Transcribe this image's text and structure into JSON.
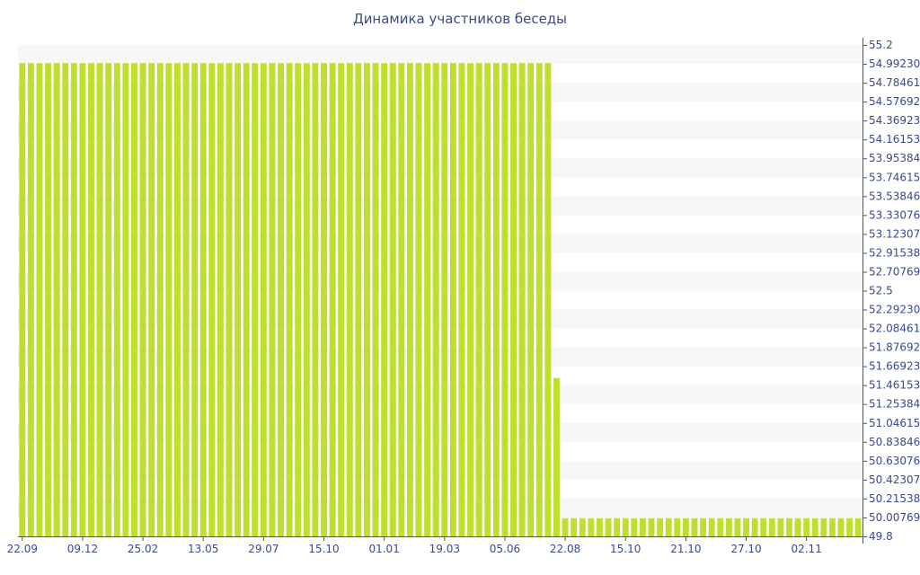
{
  "chart_data": {
    "type": "bar",
    "title": "Динамика участников беседы",
    "xlabel": "",
    "ylabel": "",
    "ylim": [
      49.8,
      55.2
    ],
    "y_ticks": [
      "55.2",
      "54.992307",
      "54.784615",
      "54.576923",
      "54.369230",
      "54.161538",
      "53.953846",
      "53.746153",
      "53.538461",
      "53.330769",
      "53.123076",
      "52.915384",
      "52.707692",
      "52.5",
      "52.292307",
      "52.084615",
      "51.876923",
      "51.669230",
      "51.461538",
      "51.253846",
      "51.046153",
      "50.838461",
      "50.630769",
      "50.423076",
      "50.215384",
      "50.007692",
      "49.8"
    ],
    "x_tick_labels": [
      "22.09",
      "09.12",
      "25.02",
      "13.05",
      "29.07",
      "15.10",
      "01.01",
      "19.03",
      "05.06",
      "22.08",
      "15.10",
      "21.10",
      "27.10",
      "02.11"
    ],
    "x_tick_bar_index": [
      0,
      7,
      14,
      21,
      28,
      35,
      42,
      49,
      56,
      63,
      70,
      77,
      84,
      91
    ],
    "bar_color": "#bedf2e",
    "stripe_color": "#f7f7f7",
    "text_color": "#3a4a8a",
    "values": [
      55,
      55,
      55,
      55,
      55,
      55,
      55,
      55,
      55,
      55,
      55,
      55,
      55,
      55,
      55,
      55,
      55,
      55,
      55,
      55,
      55,
      55,
      55,
      55,
      55,
      55,
      55,
      55,
      55,
      55,
      55,
      55,
      55,
      55,
      55,
      55,
      55,
      55,
      55,
      55,
      55,
      55,
      55,
      55,
      55,
      55,
      55,
      55,
      55,
      55,
      55,
      55,
      55,
      55,
      55,
      55,
      55,
      55,
      55,
      55,
      55,
      55,
      51.54,
      50,
      50,
      50,
      50,
      50,
      50,
      50,
      50,
      50,
      50,
      50,
      50,
      50,
      50,
      50,
      50,
      50,
      50,
      50,
      50,
      50,
      50,
      50,
      50,
      50,
      50,
      50,
      50,
      50,
      50,
      50,
      50,
      50,
      50,
      50
    ]
  }
}
